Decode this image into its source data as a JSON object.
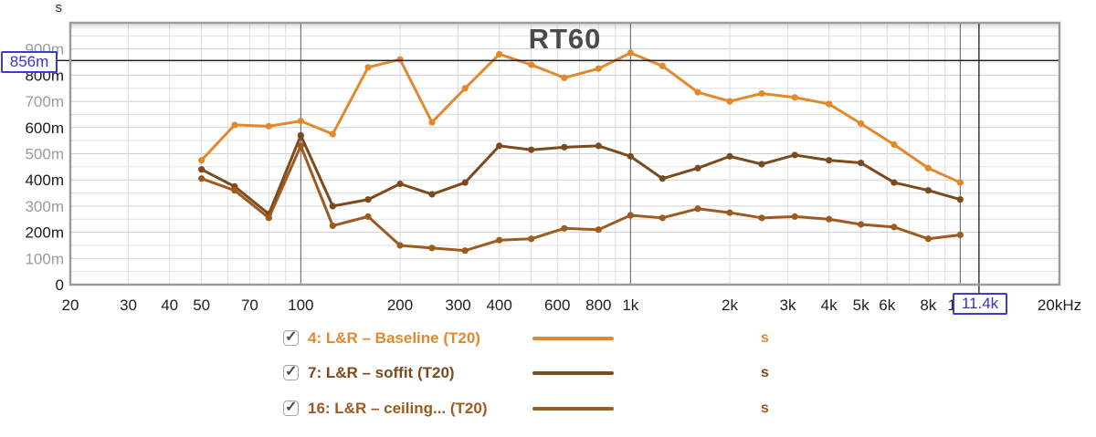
{
  "chart_data": {
    "type": "line",
    "title": "RT60",
    "y_axis_unit": "s",
    "x_scale": "log",
    "x_range_hz": [
      20,
      20000
    ],
    "y_range_s": [
      0,
      1.0
    ],
    "grid": true,
    "y_ticks": [
      {
        "label": "900m",
        "value_ms": 900,
        "emphasis": false
      },
      {
        "label": "800m",
        "value_ms": 800,
        "emphasis": true
      },
      {
        "label": "700m",
        "value_ms": 700,
        "emphasis": false
      },
      {
        "label": "600m",
        "value_ms": 600,
        "emphasis": true
      },
      {
        "label": "500m",
        "value_ms": 500,
        "emphasis": false
      },
      {
        "label": "400m",
        "value_ms": 400,
        "emphasis": true
      },
      {
        "label": "300m",
        "value_ms": 300,
        "emphasis": false
      },
      {
        "label": "200m",
        "value_ms": 200,
        "emphasis": true
      },
      {
        "label": "100m",
        "value_ms": 100,
        "emphasis": false
      },
      {
        "label": "0",
        "value_ms": 0,
        "emphasis": true
      }
    ],
    "x_ticks": [
      {
        "label": "20",
        "f": 20
      },
      {
        "label": "30",
        "f": 30
      },
      {
        "label": "40",
        "f": 40
      },
      {
        "label": "50",
        "f": 50
      },
      {
        "label": "70",
        "f": 70
      },
      {
        "label": "100",
        "f": 100
      },
      {
        "label": "200",
        "f": 200
      },
      {
        "label": "300",
        "f": 300
      },
      {
        "label": "400",
        "f": 400
      },
      {
        "label": "600",
        "f": 600
      },
      {
        "label": "800",
        "f": 800
      },
      {
        "label": "1k",
        "f": 1000
      },
      {
        "label": "2k",
        "f": 2000
      },
      {
        "label": "3k",
        "f": 3000
      },
      {
        "label": "4k",
        "f": 4000
      },
      {
        "label": "5k",
        "f": 5000
      },
      {
        "label": "6k",
        "f": 6000
      },
      {
        "label": "8k",
        "f": 8000
      },
      {
        "label": "10k",
        "f": 10000
      },
      {
        "label": "20kHz",
        "f": 20000
      }
    ],
    "frequencies_hz": [
      50,
      63,
      80,
      100,
      125,
      160,
      200,
      250,
      315,
      400,
      500,
      630,
      800,
      1000,
      1250,
      1600,
      2000,
      2500,
      3150,
      4000,
      5000,
      6300,
      8000,
      10000
    ],
    "series": [
      {
        "name": "4: L&R – Baseline (T20)",
        "unit": "s",
        "color": "#E2892E",
        "values_ms": [
          475,
          610,
          605,
          625,
          575,
          830,
          860,
          620,
          750,
          880,
          840,
          790,
          825,
          885,
          835,
          735,
          700,
          730,
          715,
          690,
          615,
          535,
          445,
          390
        ]
      },
      {
        "name": "7: L&R – soffit (T20)",
        "unit": "s",
        "color": "#7C4A1D",
        "values_ms": [
          440,
          375,
          270,
          570,
          300,
          325,
          385,
          345,
          390,
          530,
          515,
          525,
          530,
          490,
          405,
          445,
          490,
          460,
          495,
          475,
          465,
          390,
          360,
          325
        ]
      },
      {
        "name": "16: L&R – ceiling... (T20)",
        "unit": "s",
        "color": "#9E5B1F",
        "values_ms": [
          405,
          360,
          255,
          530,
          225,
          260,
          150,
          140,
          130,
          170,
          175,
          215,
          210,
          265,
          255,
          290,
          275,
          255,
          260,
          250,
          230,
          220,
          175,
          190
        ]
      }
    ],
    "cursor": {
      "y_label": "856m",
      "y_value_ms": 856,
      "x_label": "11.4k",
      "x_value_hz": 11400,
      "color": "#3434C8"
    }
  },
  "legend": {
    "items": [
      {
        "checked": true,
        "label": "4: L&R – Baseline (T20)",
        "unit": "s"
      },
      {
        "checked": true,
        "label": "7: L&R – soffit (T20)",
        "unit": "s"
      },
      {
        "checked": true,
        "label": "16: L&R – ceiling... (T20)",
        "unit": "s"
      }
    ]
  }
}
